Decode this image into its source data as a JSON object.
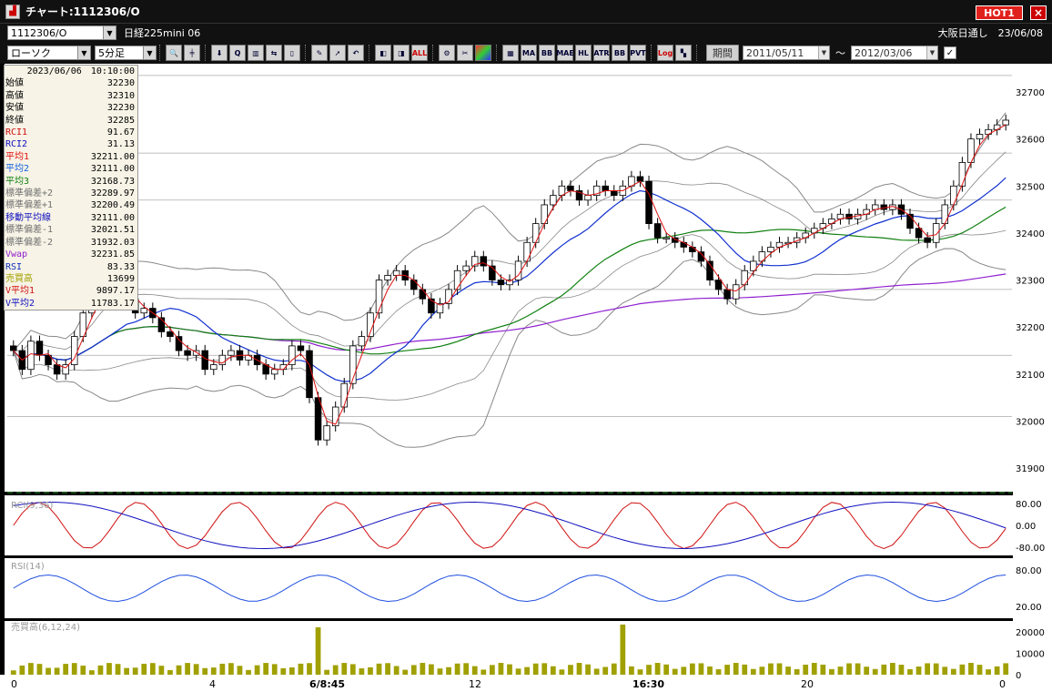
{
  "window": {
    "title": "チャート:1112306/O",
    "hot_label": "HOT1",
    "close_label": "×"
  },
  "symbol_bar": {
    "code": "1112306/O",
    "name": "日経225mini 06",
    "market_date": "大阪日通し　23/06/08"
  },
  "toolbar": {
    "chart_type": "ローソク",
    "interval": "5分足",
    "buttons": [
      "zoom",
      "line",
      "down",
      "buy",
      "chart",
      "sell",
      "mark",
      "pen",
      "cursor",
      "redo",
      "a",
      "b",
      "ALL",
      "gear",
      "tool",
      "color",
      "MA",
      "BB",
      "MAE",
      "HL",
      "ATR",
      "BB2",
      "PVT",
      "Log",
      "split"
    ],
    "period_label": "期間",
    "from_date": "2011/05/11",
    "to_date": "2012/03/06",
    "tilde": "～",
    "check": "✓"
  },
  "info_panel": {
    "datetime": "2023/06/06　10:10:00",
    "rows": [
      {
        "label": "始値",
        "value": "32230",
        "color": "#000000"
      },
      {
        "label": "高値",
        "value": "32310",
        "color": "#000000"
      },
      {
        "label": "安値",
        "value": "32230",
        "color": "#000000"
      },
      {
        "label": "終値",
        "value": "32285",
        "color": "#000000"
      },
      {
        "label": "RCI1",
        "value": "91.67",
        "color": "#d01010"
      },
      {
        "label": "RCI2",
        "value": "31.13",
        "color": "#1010c0"
      },
      {
        "label": "平均1",
        "value": "32211.00",
        "color": "#e01010"
      },
      {
        "label": "平均2",
        "value": "32111.00",
        "color": "#1060e0"
      },
      {
        "label": "平均3",
        "value": "32168.73",
        "color": "#108010"
      },
      {
        "label": "標準偏差+2",
        "value": "32289.97",
        "color": "#707070"
      },
      {
        "label": "標準偏差+1",
        "value": "32200.49",
        "color": "#707070"
      },
      {
        "label": "移動平均線",
        "value": "32111.00",
        "color": "#1010c0"
      },
      {
        "label": "標準偏差-1",
        "value": "32021.51",
        "color": "#707070"
      },
      {
        "label": "標準偏差-2",
        "value": "31932.03",
        "color": "#707070"
      },
      {
        "label": "Vwap",
        "value": "32231.85",
        "color": "#9020d0"
      },
      {
        "label": "RSI",
        "value": "83.33",
        "color": "#1030c0"
      },
      {
        "label": "売買高",
        "value": "13699",
        "color": "#a0a000"
      },
      {
        "label": "V平均1",
        "value": "9897.17",
        "color": "#d01010"
      },
      {
        "label": "V平均2",
        "value": "11783.17",
        "color": "#1010c0"
      }
    ]
  },
  "main_axis_labels": [
    "32700",
    "32600",
    "32500",
    "32400",
    "32300",
    "32200",
    "32100",
    "32000",
    "31900"
  ],
  "rci": {
    "title": "RCI(9,36)",
    "axis_labels": [
      "80.00",
      "0.00",
      "-80.00"
    ]
  },
  "rsi": {
    "title": "RSI(14)",
    "axis_labels": [
      "80.00",
      "20.00"
    ]
  },
  "volume": {
    "title": "売買高(6,12,24)",
    "axis_labels": [
      "20000",
      "10000",
      "0"
    ]
  },
  "time_axis": [
    "0",
    "4",
    "6/8:45",
    "12",
    "16:30",
    "20",
    "0"
  ],
  "colors": {
    "bg": "#ffffff",
    "candle_up": "#ffffff",
    "candle_down": "#000000",
    "ma1": "#e01010",
    "ma2": "#1030d0",
    "ma3": "#108010",
    "vwap": "#9020d0",
    "bands": "#808080",
    "rsi": "#2050e0",
    "volume": "#a0a000"
  },
  "chart_data": [
    {
      "type": "candlestick",
      "title": "",
      "ylim": [
        31850,
        32760
      ],
      "yticks": [
        32700,
        32600,
        32500,
        32400,
        32300,
        32200,
        32100,
        32000,
        31900
      ],
      "close": [
        32150,
        32110,
        32170,
        32140,
        32120,
        32100,
        32120,
        32180,
        32230,
        32250,
        32290,
        32310,
        32300,
        32260,
        32230,
        32240,
        32220,
        32190,
        32180,
        32150,
        32140,
        32150,
        32110,
        32120,
        32140,
        32150,
        32130,
        32140,
        32120,
        32100,
        32110,
        32120,
        32160,
        32150,
        32050,
        31960,
        31990,
        32030,
        32080,
        32160,
        32180,
        32230,
        32300,
        32310,
        32320,
        32300,
        32280,
        32260,
        32230,
        32250,
        32280,
        32320,
        32330,
        32350,
        32330,
        32300,
        32290,
        32300,
        32340,
        32380,
        32420,
        32460,
        32480,
        32500,
        32490,
        32470,
        32480,
        32500,
        32490,
        32480,
        32500,
        32520,
        32510,
        32420,
        32390,
        32390,
        32380,
        32370,
        32360,
        32340,
        32300,
        32280,
        32260,
        32290,
        32320,
        32340,
        32360,
        32370,
        32380,
        32380,
        32390,
        32400,
        32410,
        32420,
        32430,
        32440,
        32430,
        32440,
        32450,
        32460,
        32450,
        32460,
        32440,
        32410,
        32390,
        32380,
        32420,
        32460,
        32500,
        32550,
        32600,
        32610,
        32620,
        32630,
        32640
      ],
      "ma1_note": "short moving average follows close",
      "rci_ylim": [
        -100,
        100
      ],
      "rsi_ylim": [
        0,
        100
      ],
      "volume_ylim": [
        0,
        25000
      ]
    }
  ]
}
